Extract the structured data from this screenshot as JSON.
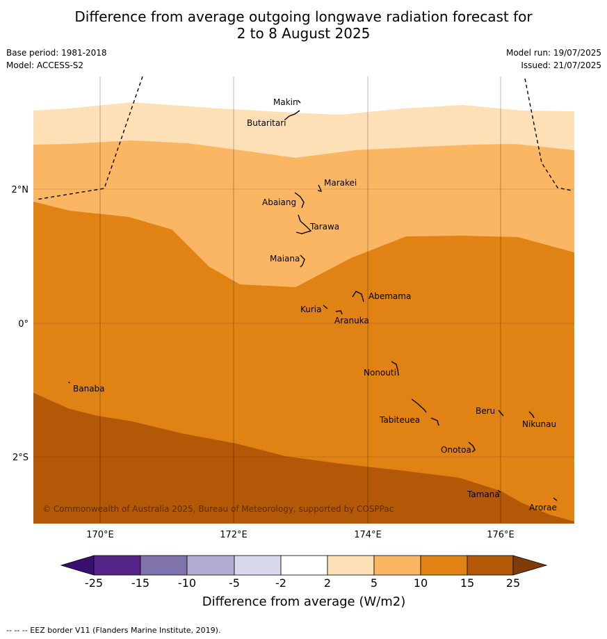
{
  "title_line1": "Difference from average outgoing longwave radiation forecast for",
  "title_line2": "2 to 8 August 2025",
  "meta": {
    "base_period": "Base period: 1981-2018",
    "model": "Model: ACCESS-S2",
    "model_run": "Model run: 19/07/2025",
    "issued": "Issued: 21/07/2025"
  },
  "copyright": "© Commonwealth of Australia 2025, Bureau of Meteorology, supported by COSPPac",
  "lon_ticks": [
    "170°E",
    "172°E",
    "174°E",
    "176°E"
  ],
  "lat_ticks": [
    "2°N",
    "0°",
    "2°S"
  ],
  "places": [
    {
      "name": "Makin",
      "lon": 173.0,
      "lat": 3.3
    },
    {
      "name": "Butaritari",
      "lon": 172.8,
      "lat": 3.05
    },
    {
      "name": "Marakei",
      "lon": 173.3,
      "lat": 2.0
    },
    {
      "name": "Abaiang",
      "lon": 173.0,
      "lat": 1.8
    },
    {
      "name": "Tarawa",
      "lon": 173.0,
      "lat": 1.4
    },
    {
      "name": "Maiana",
      "lon": 173.0,
      "lat": 0.95
    },
    {
      "name": "Abemama",
      "lon": 173.9,
      "lat": 0.4
    },
    {
      "name": "Kuria",
      "lon": 173.4,
      "lat": 0.24
    },
    {
      "name": "Aranuka",
      "lon": 173.6,
      "lat": 0.16
    },
    {
      "name": "Nonouti",
      "lon": 174.4,
      "lat": -0.65
    },
    {
      "name": "Banaba",
      "lon": 169.55,
      "lat": -0.87
    },
    {
      "name": "Beru",
      "lon": 176.0,
      "lat": -1.33
    },
    {
      "name": "Nikunau",
      "lon": 176.45,
      "lat": -1.35
    },
    {
      "name": "Tabiteuea",
      "lon": 174.8,
      "lat": -1.3
    },
    {
      "name": "Onotoa",
      "lon": 175.55,
      "lat": -1.8
    },
    {
      "name": "Tamana",
      "lon": 175.98,
      "lat": -2.5
    },
    {
      "name": "Arorae",
      "lon": 176.8,
      "lat": -2.64
    }
  ],
  "colorbar": {
    "label": "Difference from average (W/m2)",
    "ticks": [
      "-25",
      "-15",
      "-10",
      "-5",
      "-2",
      "2",
      "5",
      "10",
      "15",
      "25"
    ],
    "colors": [
      "#3b0f6f",
      "#542587",
      "#8073ac",
      "#b2abd2",
      "#d8daeb",
      "#ffffff",
      "#fee0b6",
      "#fbb663",
      "#e08214",
      "#b35806",
      "#7f3b08"
    ]
  },
  "legend_footnote": "--  --  -- EEZ border V11 (Flanders Marine Institute, 2019)."
}
